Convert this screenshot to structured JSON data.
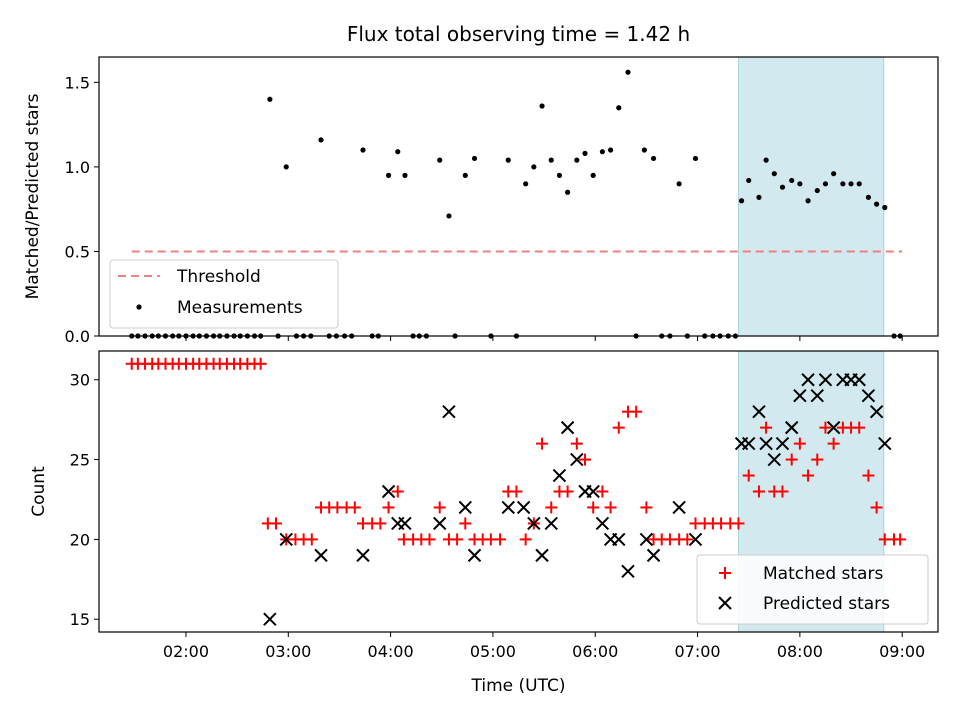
{
  "chart_data": [
    {
      "type": "scatter",
      "title": "Flux total observing time = 1.42 h",
      "xlabel": "",
      "ylabel": "Matched/Predicted stars",
      "xlim": [
        1.15,
        9.35
      ],
      "ylim": [
        0,
        1.65
      ],
      "yticks": [
        0.0,
        0.5,
        1.0,
        1.5
      ],
      "ytick_labels": [
        "0.0",
        "0.5",
        "1.0",
        "1.5"
      ],
      "highlight_span": [
        7.4,
        8.82
      ],
      "highlight_color": "#d3e9f0",
      "legend": {
        "position": "bottom-left",
        "threshold_label": "Threshold",
        "measurements_label": "Measurements"
      },
      "threshold": {
        "y": 0.5,
        "x_start": 1.47,
        "x_end": 9.0,
        "color": "#f08080"
      },
      "series": [
        {
          "name": "Measurements",
          "color": "#000000",
          "points": [
            [
              1.47,
              0
            ],
            [
              1.53,
              0
            ],
            [
              1.6,
              0
            ],
            [
              1.67,
              0
            ],
            [
              1.73,
              0
            ],
            [
              1.8,
              0
            ],
            [
              1.87,
              0
            ],
            [
              1.93,
              0
            ],
            [
              2.0,
              0
            ],
            [
              2.07,
              0
            ],
            [
              2.13,
              0
            ],
            [
              2.2,
              0
            ],
            [
              2.27,
              0
            ],
            [
              2.33,
              0
            ],
            [
              2.4,
              0
            ],
            [
              2.47,
              0
            ],
            [
              2.53,
              0
            ],
            [
              2.6,
              0
            ],
            [
              2.67,
              0
            ],
            [
              2.73,
              0
            ],
            [
              2.82,
              1.4
            ],
            [
              2.9,
              0
            ],
            [
              2.98,
              1.0
            ],
            [
              3.08,
              0
            ],
            [
              3.15,
              0
            ],
            [
              3.22,
              0
            ],
            [
              3.32,
              1.16
            ],
            [
              3.4,
              0
            ],
            [
              3.47,
              0
            ],
            [
              3.55,
              0
            ],
            [
              3.62,
              0
            ],
            [
              3.73,
              1.1
            ],
            [
              3.82,
              0
            ],
            [
              3.88,
              0
            ],
            [
              3.98,
              0.95
            ],
            [
              4.07,
              1.09
            ],
            [
              4.14,
              0.95
            ],
            [
              4.22,
              0
            ],
            [
              4.28,
              0
            ],
            [
              4.35,
              0
            ],
            [
              4.48,
              1.04
            ],
            [
              4.57,
              0.71
            ],
            [
              4.63,
              0
            ],
            [
              4.73,
              0.95
            ],
            [
              4.82,
              1.05
            ],
            [
              4.98,
              0
            ],
            [
              5.15,
              1.04
            ],
            [
              5.23,
              0
            ],
            [
              5.32,
              0.9
            ],
            [
              5.4,
              1.0
            ],
            [
              5.48,
              1.36
            ],
            [
              5.57,
              1.04
            ],
            [
              5.65,
              0.95
            ],
            [
              5.73,
              0.85
            ],
            [
              5.82,
              1.04
            ],
            [
              5.9,
              1.08
            ],
            [
              5.98,
              0.95
            ],
            [
              6.07,
              1.09
            ],
            [
              6.15,
              1.1
            ],
            [
              6.23,
              1.35
            ],
            [
              6.32,
              1.56
            ],
            [
              6.4,
              0
            ],
            [
              6.48,
              1.1
            ],
            [
              6.57,
              1.05
            ],
            [
              6.65,
              0
            ],
            [
              6.73,
              0
            ],
            [
              6.82,
              0.9
            ],
            [
              6.9,
              0
            ],
            [
              6.98,
              1.05
            ],
            [
              7.07,
              0
            ],
            [
              7.15,
              0
            ],
            [
              7.22,
              0
            ],
            [
              7.3,
              0
            ],
            [
              7.37,
              0
            ],
            [
              7.43,
              0.8
            ],
            [
              7.5,
              0.92
            ],
            [
              7.6,
              0.82
            ],
            [
              7.67,
              1.04
            ],
            [
              7.75,
              0.96
            ],
            [
              7.83,
              0.88
            ],
            [
              7.92,
              0.92
            ],
            [
              8.0,
              0.9
            ],
            [
              8.08,
              0.8
            ],
            [
              8.17,
              0.86
            ],
            [
              8.25,
              0.9
            ],
            [
              8.33,
              0.96
            ],
            [
              8.42,
              0.9
            ],
            [
              8.5,
              0.9
            ],
            [
              8.58,
              0.9
            ],
            [
              8.67,
              0.82
            ],
            [
              8.75,
              0.78
            ],
            [
              8.83,
              0.76
            ],
            [
              8.92,
              0
            ],
            [
              8.98,
              0
            ]
          ]
        }
      ]
    },
    {
      "type": "scatter",
      "title": "",
      "xlabel": "Time (UTC)",
      "ylabel": "Count",
      "xlim": [
        1.15,
        9.35
      ],
      "ylim": [
        14.2,
        31.8
      ],
      "yticks": [
        15,
        20,
        25,
        30
      ],
      "ytick_labels": [
        "15",
        "20",
        "25",
        "30"
      ],
      "xticks": [
        2,
        3,
        4,
        5,
        6,
        7,
        8,
        9
      ],
      "xtick_labels": [
        "02:00",
        "03:00",
        "04:00",
        "05:00",
        "06:00",
        "07:00",
        "08:00",
        "09:00"
      ],
      "highlight_span": [
        7.4,
        8.82
      ],
      "highlight_color": "#d3e9f0",
      "legend": {
        "position": "bottom-right",
        "matched_label": "Matched stars",
        "predicted_label": "Predicted stars"
      },
      "series": [
        {
          "name": "Matched stars",
          "marker": "plus",
          "color": "#ff0000",
          "points": [
            [
              1.47,
              31
            ],
            [
              1.53,
              31
            ],
            [
              1.6,
              31
            ],
            [
              1.67,
              31
            ],
            [
              1.73,
              31
            ],
            [
              1.8,
              31
            ],
            [
              1.87,
              31
            ],
            [
              1.93,
              31
            ],
            [
              2.0,
              31
            ],
            [
              2.07,
              31
            ],
            [
              2.13,
              31
            ],
            [
              2.2,
              31
            ],
            [
              2.27,
              31
            ],
            [
              2.33,
              31
            ],
            [
              2.4,
              31
            ],
            [
              2.47,
              31
            ],
            [
              2.53,
              31
            ],
            [
              2.6,
              31
            ],
            [
              2.67,
              31
            ],
            [
              2.73,
              31
            ],
            [
              2.8,
              21
            ],
            [
              2.88,
              21
            ],
            [
              2.98,
              20
            ],
            [
              3.07,
              20
            ],
            [
              3.15,
              20
            ],
            [
              3.23,
              20
            ],
            [
              3.32,
              22
            ],
            [
              3.4,
              22
            ],
            [
              3.48,
              22
            ],
            [
              3.57,
              22
            ],
            [
              3.65,
              22
            ],
            [
              3.73,
              21
            ],
            [
              3.82,
              21
            ],
            [
              3.9,
              21
            ],
            [
              3.98,
              22
            ],
            [
              4.07,
              23
            ],
            [
              4.13,
              20
            ],
            [
              4.22,
              20
            ],
            [
              4.3,
              20
            ],
            [
              4.38,
              20
            ],
            [
              4.48,
              22
            ],
            [
              4.57,
              20
            ],
            [
              4.65,
              20
            ],
            [
              4.73,
              21
            ],
            [
              4.82,
              20
            ],
            [
              4.9,
              20
            ],
            [
              4.98,
              20
            ],
            [
              5.07,
              20
            ],
            [
              5.15,
              23
            ],
            [
              5.23,
              23
            ],
            [
              5.32,
              20
            ],
            [
              5.4,
              21
            ],
            [
              5.48,
              26
            ],
            [
              5.57,
              22
            ],
            [
              5.65,
              23
            ],
            [
              5.73,
              23
            ],
            [
              5.82,
              26
            ],
            [
              5.9,
              25
            ],
            [
              5.98,
              22
            ],
            [
              6.07,
              23
            ],
            [
              6.15,
              22
            ],
            [
              6.23,
              27
            ],
            [
              6.32,
              28
            ],
            [
              6.4,
              28
            ],
            [
              6.5,
              22
            ],
            [
              6.57,
              20
            ],
            [
              6.65,
              20
            ],
            [
              6.73,
              20
            ],
            [
              6.82,
              20
            ],
            [
              6.9,
              20
            ],
            [
              6.98,
              21
            ],
            [
              7.07,
              21
            ],
            [
              7.15,
              21
            ],
            [
              7.23,
              21
            ],
            [
              7.32,
              21
            ],
            [
              7.4,
              21
            ],
            [
              7.5,
              24
            ],
            [
              7.6,
              23
            ],
            [
              7.67,
              27
            ],
            [
              7.75,
              23
            ],
            [
              7.83,
              23
            ],
            [
              7.92,
              25
            ],
            [
              8.0,
              26
            ],
            [
              8.08,
              24
            ],
            [
              8.17,
              25
            ],
            [
              8.25,
              27
            ],
            [
              8.33,
              26
            ],
            [
              8.42,
              27
            ],
            [
              8.5,
              27
            ],
            [
              8.58,
              27
            ],
            [
              8.67,
              24
            ],
            [
              8.75,
              22
            ],
            [
              8.83,
              20
            ],
            [
              8.92,
              20
            ],
            [
              8.98,
              20
            ]
          ]
        },
        {
          "name": "Predicted stars",
          "marker": "x",
          "color": "#000000",
          "points": [
            [
              2.82,
              15
            ],
            [
              2.98,
              20
            ],
            [
              3.32,
              19
            ],
            [
              3.73,
              19
            ],
            [
              3.98,
              23
            ],
            [
              4.07,
              21
            ],
            [
              4.14,
              21
            ],
            [
              4.48,
              21
            ],
            [
              4.57,
              28
            ],
            [
              4.73,
              22
            ],
            [
              4.82,
              19
            ],
            [
              5.15,
              22
            ],
            [
              5.3,
              22
            ],
            [
              5.4,
              21
            ],
            [
              5.48,
              19
            ],
            [
              5.57,
              21
            ],
            [
              5.65,
              24
            ],
            [
              5.73,
              27
            ],
            [
              5.82,
              25
            ],
            [
              5.9,
              23
            ],
            [
              5.98,
              23
            ],
            [
              6.07,
              21
            ],
            [
              6.15,
              20
            ],
            [
              6.23,
              20
            ],
            [
              6.32,
              18
            ],
            [
              6.5,
              20
            ],
            [
              6.57,
              19
            ],
            [
              6.82,
              22
            ],
            [
              6.98,
              20
            ],
            [
              7.43,
              26
            ],
            [
              7.5,
              26
            ],
            [
              7.6,
              28
            ],
            [
              7.67,
              26
            ],
            [
              7.75,
              25
            ],
            [
              7.83,
              26
            ],
            [
              7.92,
              27
            ],
            [
              8.0,
              29
            ],
            [
              8.08,
              30
            ],
            [
              8.17,
              29
            ],
            [
              8.25,
              30
            ],
            [
              8.33,
              27
            ],
            [
              8.42,
              30
            ],
            [
              8.5,
              30
            ],
            [
              8.58,
              30
            ],
            [
              8.67,
              29
            ],
            [
              8.75,
              28
            ],
            [
              8.83,
              26
            ]
          ]
        }
      ]
    }
  ]
}
